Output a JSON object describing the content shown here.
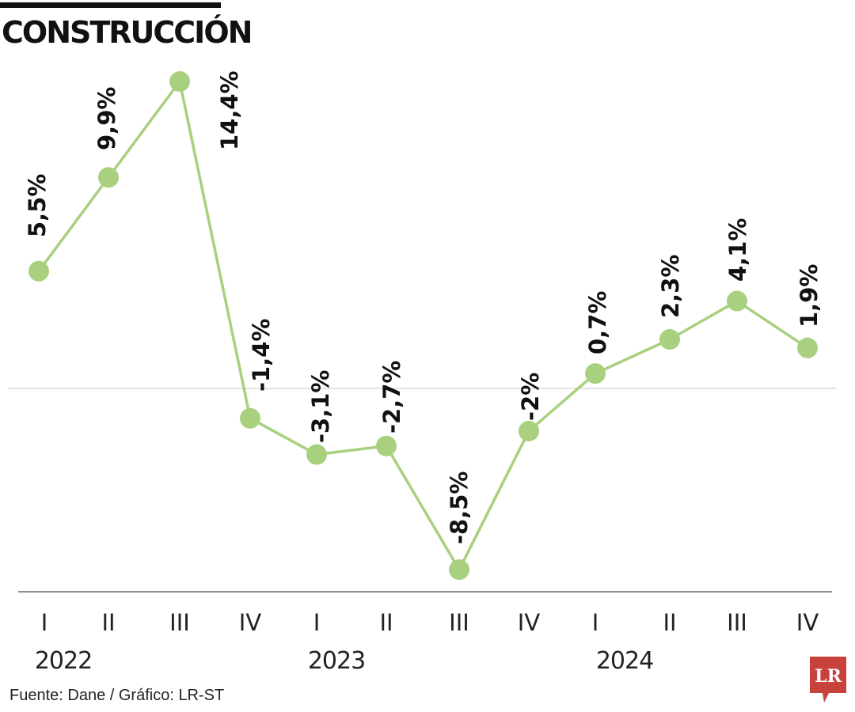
{
  "title": "CONSTRUCCIÓN",
  "source": "Fuente: Dane / Gráfico: LR-ST",
  "logo_text": "LR",
  "colors": {
    "line": "#a8d07e",
    "marker": "#a8d07e",
    "zero_line": "#c8c8c8",
    "baseline": "#666666",
    "logo_bg": "#c8413b"
  },
  "chart_data": {
    "type": "line",
    "title": "CONSTRUCCIÓN",
    "categories": [
      "I",
      "II",
      "III",
      "IV",
      "I",
      "II",
      "III",
      "IV",
      "I",
      "II",
      "III",
      "IV"
    ],
    "years": [
      {
        "label": "2022",
        "quarters": [
          "I",
          "II",
          "III"
        ]
      },
      {
        "label": "2023",
        "quarters": [
          "IV",
          "I",
          "II",
          "III",
          "IV"
        ]
      },
      {
        "label": "2024",
        "quarters": [
          "I",
          "II",
          "III",
          "IV"
        ]
      }
    ],
    "values": [
      5.5,
      9.9,
      14.4,
      -1.4,
      -3.1,
      -2.7,
      -8.5,
      -2,
      0.7,
      2.3,
      4.1,
      1.9
    ],
    "labels": [
      "5,5%",
      "9,9%",
      "14,4%",
      "-1,4%",
      "-3,1%",
      "-2,7%",
      "-8,5%",
      "-2%",
      "0,7%",
      "2,3%",
      "4,1%",
      "1,9%"
    ],
    "ylim": [
      -10,
      15
    ],
    "zero_line": true,
    "grid": false,
    "legend": "none"
  }
}
